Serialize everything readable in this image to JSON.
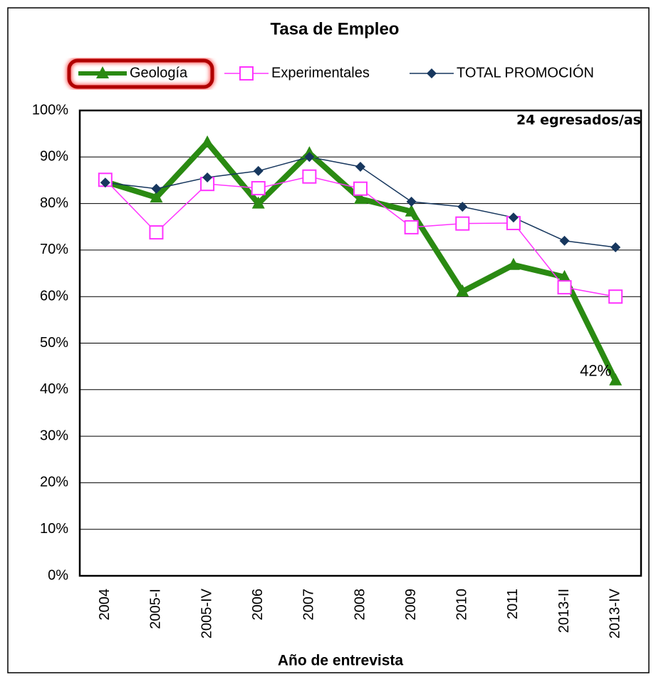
{
  "chart_data": {
    "type": "line",
    "title": "Tasa de Empleo",
    "subtitle": "24 egresados/as",
    "x_label": "Año de entrevista",
    "categories": [
      "2004",
      "2005-I",
      "2005-IV",
      "2006",
      "2007",
      "2008",
      "2009",
      "2010",
      "2011",
      "2013-II",
      "2013-IV"
    ],
    "series": [
      {
        "name": "Geología",
        "color": "#2a8a12",
        "marker": "triangle",
        "values": [
          84.7,
          81.3,
          93.1,
          80.0,
          90.8,
          81.0,
          78.3,
          61.1,
          66.8,
          64.2,
          42
        ],
        "value_labels": [
          null,
          null,
          null,
          null,
          null,
          null,
          null,
          null,
          null,
          null,
          "42%"
        ]
      },
      {
        "name": "Experimentales",
        "color": "#ff33ff",
        "marker": "square",
        "values": [
          85.1,
          73.8,
          84.2,
          83.3,
          85.8,
          83.2,
          74.9,
          75.7,
          75.8,
          62.0,
          60.0
        ]
      },
      {
        "name": "TOTAL PROMOCIÓN",
        "color": "#17375e",
        "marker": "diamond",
        "values": [
          84.5,
          83.2,
          85.6,
          87.0,
          90.0,
          87.9,
          80.4,
          79.3,
          77.0,
          72.0,
          70.6
        ]
      }
    ],
    "ylim": [
      0,
      100
    ],
    "yticks": [
      {
        "value": 0,
        "label": "0%"
      },
      {
        "value": 10,
        "label": "10%"
      },
      {
        "value": 20,
        "label": "20%"
      },
      {
        "value": 30,
        "label": "30%"
      },
      {
        "value": 40,
        "label": "40%"
      },
      {
        "value": 50,
        "label": "50%"
      },
      {
        "value": 60,
        "label": "60%"
      },
      {
        "value": 70,
        "label": "70%"
      },
      {
        "value": 80,
        "label": "80%"
      },
      {
        "value": 90,
        "label": "90%"
      },
      {
        "value": 100,
        "label": "100%"
      }
    ],
    "grid": true,
    "legend": "top"
  }
}
